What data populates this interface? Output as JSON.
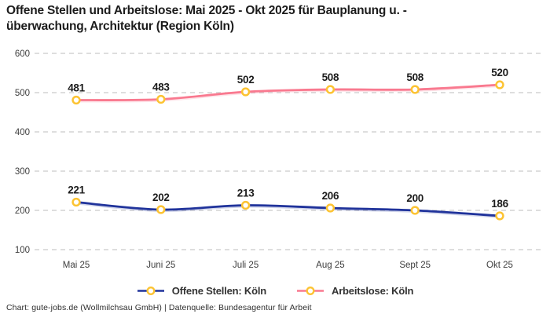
{
  "title": {
    "line1": "Offene Stellen und Arbeitslose: Mai 2025 - Okt 2025 für Bauplanung u. -",
    "line2": "überwachung, Architektur (Region Köln)"
  },
  "chart_data": {
    "type": "line",
    "categories": [
      "Mai 25",
      "Juni 25",
      "Juli 25",
      "Aug 25",
      "Sept 25",
      "Okt 25"
    ],
    "series": [
      {
        "name": "Offene Stellen: Köln",
        "values": [
          221,
          202,
          213,
          206,
          200,
          186
        ],
        "color": "#20339b"
      },
      {
        "name": "Arbeitslose: Köln",
        "values": [
          481,
          483,
          502,
          508,
          508,
          520
        ],
        "color": "#f9798f"
      }
    ],
    "marker_stroke_color": "#fcc332",
    "marker_fill_color": "#ffffff",
    "yticks": [
      100,
      200,
      300,
      400,
      500,
      600
    ],
    "ylim": [
      100,
      600
    ],
    "grid": "horizontal-dashed",
    "gridline_color": "#c9c9c9",
    "tick_label_color": "#3d3d3d",
    "data_label_color": "#1c1c1c",
    "legend_position": "bottom"
  },
  "footer": {
    "text": "Chart: gute-jobs.de (Wollmilchsau GmbH) | Datenquelle: Bundesagentur für Arbeit"
  }
}
